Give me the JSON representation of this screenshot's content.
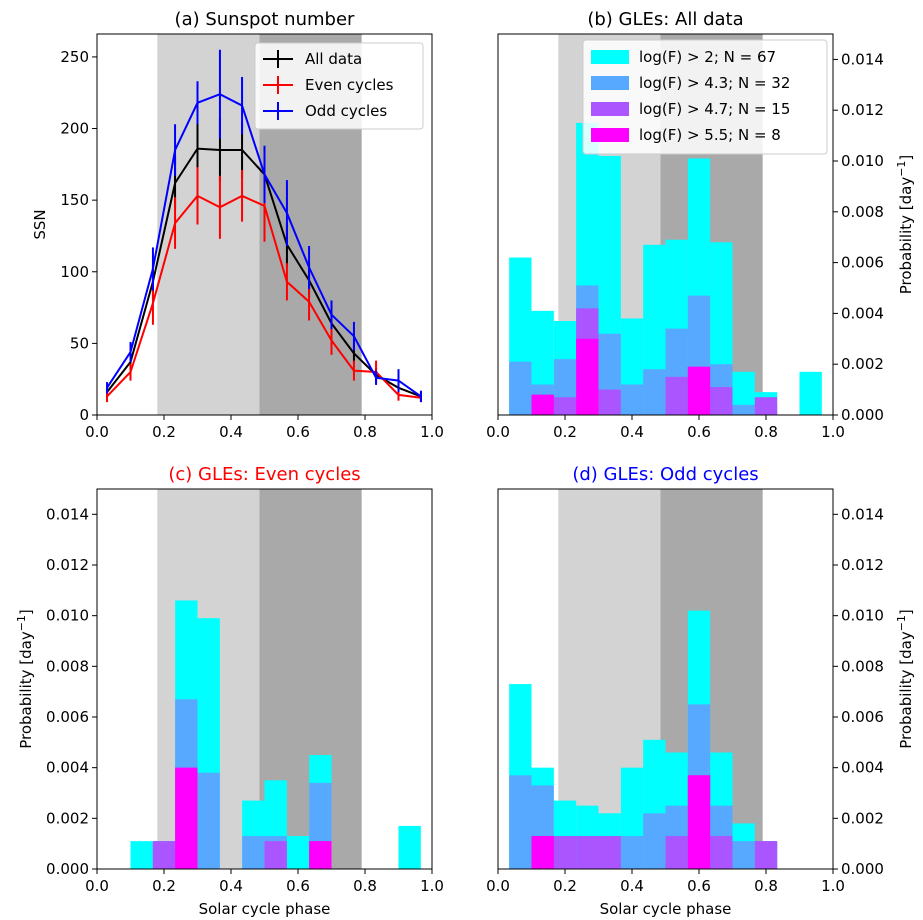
{
  "chart_data": [
    {
      "panel": "a",
      "type": "line",
      "title": "(a) Sunspot number",
      "title_color": "#000000",
      "xlabel": "",
      "ylabel": "SSN",
      "xlim": [
        0.0,
        1.0
      ],
      "ylim": [
        0,
        266
      ],
      "xticks": [
        "0.0",
        "0.2",
        "0.4",
        "0.6",
        "0.8",
        "1.0"
      ],
      "yticks": [
        "0",
        "50",
        "100",
        "150",
        "200",
        "250"
      ],
      "ytick_side": "left",
      "shaded_bands": [
        {
          "x0": 0.18,
          "x1": 0.485,
          "color": "#d3d3d3"
        },
        {
          "x0": 0.485,
          "x1": 0.79,
          "color": "#a9a9a9"
        }
      ],
      "x": [
        0.03,
        0.1,
        0.167,
        0.233,
        0.3,
        0.367,
        0.433,
        0.5,
        0.567,
        0.633,
        0.7,
        0.767,
        0.833,
        0.9,
        0.967
      ],
      "series": [
        {
          "name": "All data",
          "color": "#000000",
          "values": [
            16,
            37,
            93,
            162,
            186,
            185,
            185,
            168,
            119,
            94,
            64,
            43,
            28,
            19,
            13
          ],
          "errors": [
            4,
            6,
            12,
            18,
            20,
            22,
            20,
            19,
            15,
            12,
            9,
            7,
            5,
            4,
            3
          ]
        },
        {
          "name": "Even cycles",
          "color": "#ff0000",
          "values": [
            13,
            30,
            78,
            134,
            153,
            145,
            153,
            146,
            93,
            79,
            52,
            31,
            30,
            14,
            12
          ],
          "errors": [
            4,
            6,
            15,
            18,
            20,
            22,
            18,
            25,
            13,
            13,
            10,
            7,
            8,
            4,
            3
          ]
        },
        {
          "name": "Odd cycles",
          "color": "#0000ff",
          "values": [
            19,
            44,
            102,
            185,
            218,
            224,
            216,
            168,
            141,
            103,
            70,
            55,
            26,
            24,
            13
          ],
          "errors": [
            4,
            7,
            15,
            18,
            15,
            31,
            20,
            20,
            23,
            15,
            10,
            10,
            5,
            8,
            4
          ]
        }
      ],
      "legend": {
        "placement": "top-right",
        "entries": [
          "All data",
          "Even cycles",
          "Odd cycles"
        ]
      }
    },
    {
      "panel": "b",
      "type": "bar",
      "title": "(b) GLEs: All data",
      "title_color": "#000000",
      "xlabel": "",
      "ylabel": "Probability [day$^{-1}$]",
      "ylabel_text": "Probability [day",
      "ylabel_sup": "−1",
      "ylabel_close": "]",
      "xlim": [
        0.0,
        1.0
      ],
      "ylim": [
        0,
        0.015
      ],
      "xticks": [
        "0.0",
        "0.2",
        "0.4",
        "0.6",
        "0.8",
        "1.0"
      ],
      "yticks": [
        "0.000",
        "0.002",
        "0.004",
        "0.006",
        "0.008",
        "0.010",
        "0.012",
        "0.014"
      ],
      "ytick_side": "right",
      "shaded_bands": [
        {
          "x0": 0.18,
          "x1": 0.485,
          "color": "#d3d3d3"
        },
        {
          "x0": 0.485,
          "x1": 0.79,
          "color": "#a9a9a9"
        }
      ],
      "bin_edges": [
        0.0333,
        0.1,
        0.1667,
        0.2333,
        0.3,
        0.3667,
        0.4333,
        0.5,
        0.5667,
        0.6333,
        0.7,
        0.7667,
        0.8333,
        0.9,
        0.9667
      ],
      "series": [
        {
          "name": "log(F) > 2; N = 67",
          "color": "#00ffff",
          "values": [
            0.0062,
            0.0041,
            0.0037,
            0.0115,
            0.0102,
            0.0038,
            0.0067,
            0.0069,
            0.0101,
            0.0068,
            0.0017,
            0.0009,
            0,
            0.0017
          ]
        },
        {
          "name": "log(F) > 4.3; N = 32",
          "color": "#57a9ff",
          "values": [
            0.0021,
            0.0012,
            0.0022,
            0.0051,
            0.0032,
            0.0012,
            0.0018,
            0.0034,
            0.0047,
            0.002,
            0.0004,
            0.0004,
            0,
            0
          ]
        },
        {
          "name": "log(F) > 4.7; N = 15",
          "color": "#aa55ff",
          "values": [
            0,
            0.0008,
            0.0007,
            0.0042,
            0.001,
            0,
            0,
            0.0015,
            0.0019,
            0.0011,
            0,
            0.0007,
            0,
            0
          ]
        },
        {
          "name": "log(F) > 5.5; N = 8",
          "color": "#ff00ff",
          "values": [
            0,
            0.0008,
            0,
            0.003,
            0,
            0,
            0,
            0,
            0.0019,
            0,
            0,
            0,
            0,
            0
          ]
        }
      ],
      "legend": {
        "placement": "top-right",
        "entries": [
          "log(F) > 2; N = 67",
          "log(F) > 4.3; N = 32",
          "log(F) > 4.7; N = 15",
          "log(F) > 5.5; N = 8"
        ]
      }
    },
    {
      "panel": "c",
      "type": "bar",
      "title": "(c) GLEs: Even cycles",
      "title_color": "#ff0000",
      "xlabel": "Solar cycle phase",
      "ylabel": "Probability [day$^{-1}$]",
      "ylabel_text": "Probability [day",
      "ylabel_sup": "−1",
      "ylabel_close": "]",
      "xlim": [
        0.0,
        1.0
      ],
      "ylim": [
        0,
        0.015
      ],
      "xticks": [
        "0.0",
        "0.2",
        "0.4",
        "0.6",
        "0.8",
        "1.0"
      ],
      "yticks": [
        "0.000",
        "0.002",
        "0.004",
        "0.006",
        "0.008",
        "0.010",
        "0.012",
        "0.014"
      ],
      "ytick_side": "left",
      "shaded_bands": [
        {
          "x0": 0.18,
          "x1": 0.485,
          "color": "#d3d3d3"
        },
        {
          "x0": 0.485,
          "x1": 0.79,
          "color": "#a9a9a9"
        }
      ],
      "bin_edges": [
        0.1,
        0.1667,
        0.2333,
        0.3,
        0.3667,
        0.4333,
        0.5,
        0.5667,
        0.6333,
        0.7,
        0.7667,
        0.8333,
        0.9,
        0.9667
      ],
      "series": [
        {
          "name": "log(F) > 2",
          "color": "#00ffff",
          "values": [
            0.0011,
            0.0011,
            0.0106,
            0.0099,
            0,
            0.0027,
            0.0035,
            0.0013,
            0.0045,
            0,
            0,
            0,
            0.0017
          ]
        },
        {
          "name": "log(F) > 4.3",
          "color": "#57a9ff",
          "values": [
            0,
            0.0011,
            0.0067,
            0.0038,
            0,
            0.0013,
            0.0013,
            0,
            0.0034,
            0,
            0,
            0,
            0
          ]
        },
        {
          "name": "log(F) > 4.7",
          "color": "#aa55ff",
          "values": [
            0,
            0.0011,
            0.004,
            0,
            0,
            0,
            0.0011,
            0,
            0.0011,
            0,
            0,
            0,
            0
          ]
        },
        {
          "name": "log(F) > 5.5",
          "color": "#ff00ff",
          "values": [
            0,
            0,
            0.004,
            0,
            0,
            0,
            0,
            0,
            0.0011,
            0,
            0,
            0,
            0
          ]
        }
      ]
    },
    {
      "panel": "d",
      "type": "bar",
      "title": "(d) GLEs: Odd cycles",
      "title_color": "#0000ff",
      "xlabel": "Solar cycle phase",
      "ylabel": "Probability [day$^{-1}$]",
      "ylabel_text": "Probability [day",
      "ylabel_sup": "−1",
      "ylabel_close": "]",
      "xlim": [
        0.0,
        1.0
      ],
      "ylim": [
        0,
        0.015
      ],
      "xticks": [
        "0.0",
        "0.2",
        "0.4",
        "0.6",
        "0.8",
        "1.0"
      ],
      "yticks": [
        "0.000",
        "0.002",
        "0.004",
        "0.006",
        "0.008",
        "0.010",
        "0.012",
        "0.014"
      ],
      "ytick_side": "right",
      "shaded_bands": [
        {
          "x0": 0.18,
          "x1": 0.485,
          "color": "#d3d3d3"
        },
        {
          "x0": 0.485,
          "x1": 0.79,
          "color": "#a9a9a9"
        }
      ],
      "bin_edges": [
        0.0333,
        0.1,
        0.1667,
        0.2333,
        0.3,
        0.3667,
        0.4333,
        0.5,
        0.5667,
        0.6333,
        0.7,
        0.7667,
        0.8333
      ],
      "series": [
        {
          "name": "log(F) > 2",
          "color": "#00ffff",
          "values": [
            0.0073,
            0.004,
            0.0027,
            0.0025,
            0.0022,
            0.004,
            0.0051,
            0.0046,
            0.0102,
            0.0046,
            0.0018,
            0.0011
          ]
        },
        {
          "name": "log(F) > 4.3",
          "color": "#57a9ff",
          "values": [
            0.0037,
            0.0033,
            0.0013,
            0.0013,
            0.0013,
            0.0013,
            0.0022,
            0.0025,
            0.0065,
            0.0025,
            0.0011,
            0.0011
          ]
        },
        {
          "name": "log(F) > 4.7",
          "color": "#aa55ff",
          "values": [
            0,
            0.0013,
            0.0013,
            0.0013,
            0.0013,
            0,
            0,
            0.0013,
            0.0037,
            0.0013,
            0,
            0.0011
          ]
        },
        {
          "name": "log(F) > 5.5",
          "color": "#ff00ff",
          "values": [
            0,
            0.0013,
            0,
            0,
            0,
            0,
            0,
            0,
            0.0037,
            0,
            0,
            0
          ]
        }
      ]
    }
  ]
}
